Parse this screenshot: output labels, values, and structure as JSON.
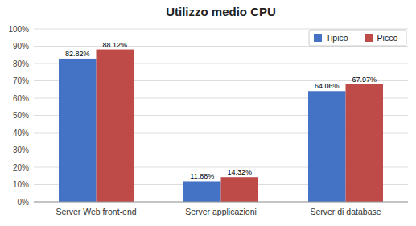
{
  "chart_data": {
    "type": "bar",
    "title": "Utilizzo medio CPU",
    "categories": [
      "Server Web front-end",
      "Server applicazioni",
      "Server di database"
    ],
    "series": [
      {
        "name": "Tipico",
        "color": "#4472C4",
        "values": [
          82.82,
          11.88,
          64.06
        ],
        "value_labels": [
          "82.82%",
          "11.88%",
          "64.06%"
        ]
      },
      {
        "name": "Picco",
        "color": "#BE4B48",
        "values": [
          88.12,
          14.32,
          67.97
        ],
        "value_labels": [
          "88.12%",
          "14.32%",
          "67.97%"
        ]
      }
    ],
    "ylim": [
      0,
      100
    ],
    "yticks": [
      {
        "value": 0,
        "label": "0%"
      },
      {
        "value": 10,
        "label": "10%"
      },
      {
        "value": 20,
        "label": "20%"
      },
      {
        "value": 30,
        "label": "30%"
      },
      {
        "value": 40,
        "label": "40%"
      },
      {
        "value": 50,
        "label": "50%"
      },
      {
        "value": 60,
        "label": "60%"
      },
      {
        "value": 70,
        "label": "70%"
      },
      {
        "value": 80,
        "label": "80%"
      },
      {
        "value": 90,
        "label": "90%"
      },
      {
        "value": 100,
        "label": "100%"
      }
    ],
    "grid": true,
    "legend": "upper right",
    "data_labels": true
  }
}
